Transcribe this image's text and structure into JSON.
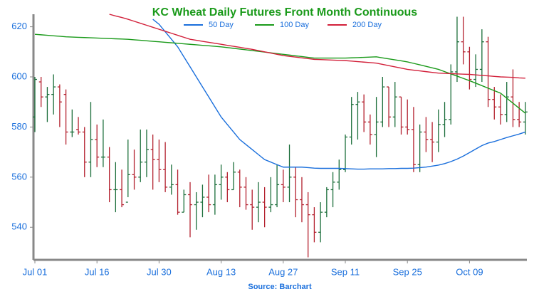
{
  "chart_data": {
    "type": "ohlc",
    "title": "KC Wheat Daily Futures Front Month Continuous",
    "source": "Source: Barchart",
    "categories": [
      "Jul 01",
      null,
      null,
      null,
      null,
      null,
      null,
      null,
      null,
      null,
      "Jul 16",
      null,
      null,
      null,
      null,
      null,
      null,
      null,
      null,
      null,
      "Jul 30",
      null,
      null,
      null,
      null,
      null,
      null,
      null,
      null,
      null,
      "Aug 13",
      null,
      null,
      null,
      null,
      null,
      null,
      null,
      null,
      null,
      "Aug 27",
      null,
      null,
      null,
      null,
      null,
      null,
      null,
      null,
      null,
      "Sep 11",
      null,
      null,
      null,
      null,
      null,
      null,
      null,
      null,
      null,
      "Sep 25",
      null,
      null,
      null,
      null,
      null,
      null,
      null,
      null,
      null,
      "Oct 09",
      null,
      null,
      null,
      null,
      null,
      null,
      null,
      null,
      null
    ],
    "ohlc": {
      "up_color": "#1b6e3a",
      "down_color": "#b3202e",
      "open": [
        584,
        598,
        592,
        593,
        596,
        593,
        578,
        579,
        578,
        566,
        575,
        568,
        568,
        555,
        555,
        550,
        561,
        560,
        566,
        571,
        567,
        563,
        556,
        557,
        546,
        553,
        549,
        550,
        552,
        549,
        557,
        560,
        555,
        562,
        556,
        549,
        548,
        550,
        548,
        549,
        557,
        556,
        560,
        551,
        549,
        545,
        538,
        546,
        555,
        558,
        563,
        576,
        589,
        590,
        582,
        577,
        582,
        596,
        584,
        592,
        580,
        579,
        565,
        578,
        575,
        574,
        581,
        583,
        602,
        614,
        610,
        599,
        603,
        614,
        591,
        588,
        585,
        592,
        583,
        582
      ],
      "high": [
        600,
        600,
        596,
        601,
        597,
        595,
        587,
        584,
        580,
        590,
        581,
        583,
        572,
        566,
        563,
        575,
        571,
        579,
        579,
        577,
        575,
        574,
        565,
        563,
        555,
        558,
        554,
        557,
        561,
        561,
        565,
        562,
        566,
        563,
        560,
        555,
        558,
        556,
        560,
        565,
        563,
        573,
        564,
        560,
        554,
        548,
        550,
        556,
        562,
        567,
        577,
        592,
        594,
        593,
        585,
        592,
        600,
        596,
        598,
        592,
        591,
        588,
        581,
        584,
        582,
        587,
        590,
        605,
        624,
        624,
        612,
        609,
        619,
        616,
        596,
        593,
        598,
        603,
        590,
        590
      ],
      "low": [
        578,
        588,
        582,
        585,
        580,
        573,
        576,
        577,
        560,
        560,
        564,
        564,
        550,
        546,
        548,
        552,
        555,
        558,
        560,
        555,
        558,
        554,
        553,
        545,
        546,
        536,
        539,
        544,
        546,
        545,
        551,
        550,
        555,
        548,
        547,
        539,
        542,
        540,
        546,
        548,
        550,
        550,
        544,
        542,
        528,
        534,
        534,
        544,
        548,
        555,
        562,
        573,
        575,
        578,
        573,
        568,
        580,
        580,
        580,
        577,
        577,
        562,
        562,
        570,
        566,
        570,
        576,
        581,
        598,
        605,
        595,
        596,
        598,
        588,
        583,
        581,
        582,
        580,
        580,
        577
      ],
      "close": [
        599,
        592,
        593,
        596,
        590,
        578,
        578,
        578,
        566,
        575,
        568,
        568,
        555,
        555,
        549,
        561,
        560,
        566,
        571,
        567,
        563,
        556,
        557,
        546,
        553,
        549,
        550,
        552,
        549,
        557,
        560,
        555,
        562,
        556,
        549,
        548,
        550,
        548,
        549,
        557,
        556,
        560,
        551,
        549,
        545,
        538,
        546,
        555,
        558,
        563,
        576,
        589,
        590,
        582,
        577,
        582,
        596,
        584,
        592,
        580,
        579,
        565,
        578,
        575,
        574,
        581,
        583,
        602,
        614,
        610,
        599,
        603,
        614,
        591,
        588,
        585,
        592,
        583,
        582,
        586
      ]
    },
    "series": [
      {
        "name": "50 Day",
        "color": "#1a6fdc",
        "values": [
          null,
          null,
          null,
          null,
          null,
          null,
          null,
          null,
          null,
          null,
          null,
          null,
          null,
          null,
          null,
          null,
          null,
          null,
          null,
          623,
          621,
          618,
          615,
          612,
          608,
          604,
          600,
          596,
          592,
          588,
          584,
          581,
          578,
          575,
          573,
          571,
          569,
          567,
          566,
          565,
          564,
          564,
          564,
          564,
          563.8,
          563.6,
          563.5,
          563.5,
          563.5,
          563.5,
          563.4,
          563.3,
          563.2,
          563.2,
          563.3,
          563.3,
          563.3,
          563.4,
          563.4,
          563.5,
          563.5,
          563.6,
          563.8,
          564,
          564.4,
          564.8,
          565.4,
          566.2,
          567.2,
          568.4,
          569.8,
          571.2,
          572.6,
          573.6,
          574.2,
          575,
          575.8,
          576.5,
          577.2,
          578
        ]
      },
      {
        "name": "100 Day",
        "color": "#1a9a1a",
        "values": [
          617,
          616.8,
          616.6,
          616.4,
          616.2,
          616,
          615.9,
          615.8,
          615.7,
          615.6,
          615.5,
          615.4,
          615.3,
          615.2,
          615.1,
          615,
          614.8,
          614.6,
          614.4,
          614.2,
          614,
          613.8,
          613.6,
          613.4,
          613.2,
          613,
          612.8,
          612.6,
          612.4,
          612.2,
          612,
          611.7,
          611.4,
          611.1,
          610.8,
          610.5,
          610.2,
          609.9,
          609.6,
          609.3,
          609,
          608.7,
          608.4,
          608.1,
          607.8,
          607.5,
          607.5,
          607.5,
          607.5,
          607.5,
          607.5,
          607.6,
          607.7,
          607.8,
          607.9,
          608,
          607.6,
          607.2,
          606.8,
          606.4,
          606,
          605.4,
          604.8,
          604.2,
          603.6,
          603,
          602.1,
          601.2,
          600.3,
          599.4,
          598.5,
          597.5,
          596.5,
          595.5,
          594.5,
          593.5,
          591.5,
          589.5,
          587.5,
          585.5
        ]
      },
      {
        "name": "200 Day",
        "color": "#d2203a",
        "values": [
          null,
          null,
          null,
          null,
          null,
          null,
          null,
          null,
          null,
          null,
          null,
          null,
          625,
          624.3,
          623.7,
          623,
          622.2,
          621.4,
          620.6,
          619.8,
          619,
          618.2,
          617.4,
          616.6,
          615.8,
          615,
          614.6,
          614.2,
          613.8,
          613.4,
          613,
          612.6,
          612.2,
          611.8,
          611.4,
          611,
          610.5,
          610,
          609.5,
          609,
          608.5,
          608.2,
          607.9,
          607.6,
          607.3,
          607,
          606.9,
          606.8,
          606.7,
          606.6,
          606.5,
          606.3,
          606.1,
          605.9,
          605.7,
          605.5,
          605,
          604.5,
          604,
          603.5,
          603,
          602.7,
          602.4,
          602.1,
          601.8,
          601.5,
          601.4,
          601.3,
          601.2,
          601.1,
          601,
          600.8,
          600.6,
          600.4,
          600.2,
          600,
          599.9,
          599.8,
          599.6,
          599.5
        ]
      }
    ],
    "ylim": [
      527,
      625
    ],
    "yticks": [
      540,
      560,
      580,
      600,
      620
    ],
    "legend": "top"
  }
}
